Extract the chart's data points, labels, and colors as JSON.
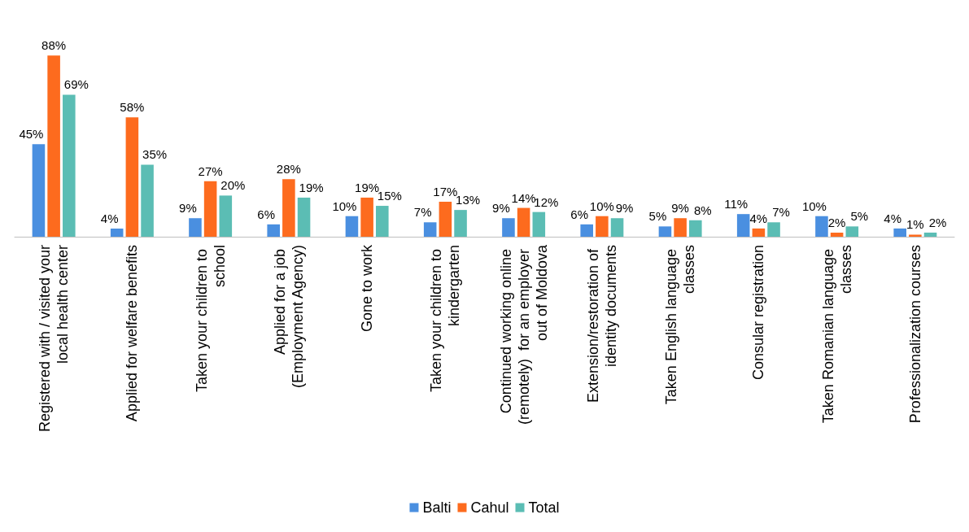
{
  "chart_data": {
    "type": "bar",
    "categories": [
      "Registered with / visited your local health center",
      "Applied for welfare benefits",
      "Taken your children to school",
      "Applied for a job (Employment Agency)",
      "Gone to work",
      "Taken your children to kindergarten",
      "Continued working online (remotely)  for an employer out of Moldova",
      "Extension/restoration of identity documents",
      "Taken English language classes",
      "Consular registration",
      "Taken Romanian language classes",
      "Professionalization courses"
    ],
    "series": [
      {
        "name": "Balti",
        "color": "#4a8fe0",
        "values": [
          45,
          4,
          9,
          6,
          10,
          7,
          9,
          6,
          5,
          11,
          10,
          4
        ],
        "value_labels": [
          "45%",
          "4%",
          "9%",
          "6%",
          "10%",
          "7%",
          "9%",
          "6%",
          "5%",
          "11%",
          "10%",
          "4%"
        ]
      },
      {
        "name": "Cahul",
        "color": "#fd6b1e",
        "values": [
          88,
          58,
          27,
          28,
          19,
          17,
          14,
          10,
          9,
          4,
          2,
          1
        ],
        "value_labels": [
          "88%",
          "58%",
          "27%",
          "28%",
          "19%",
          "17%",
          "14%",
          "10%",
          "9%",
          "4%",
          "2%",
          "1%"
        ]
      },
      {
        "name": "Total",
        "color": "#5bbdb4",
        "values": [
          69,
          35,
          20,
          19,
          15,
          13,
          12,
          9,
          8,
          7,
          5,
          2
        ],
        "value_labels": [
          "69%",
          "35%",
          "20%",
          "19%",
          "15%",
          "13%",
          "12%",
          "9%",
          "8%",
          "7%",
          "5%",
          "2%"
        ]
      }
    ],
    "grid": false,
    "legend": "bottom"
  }
}
